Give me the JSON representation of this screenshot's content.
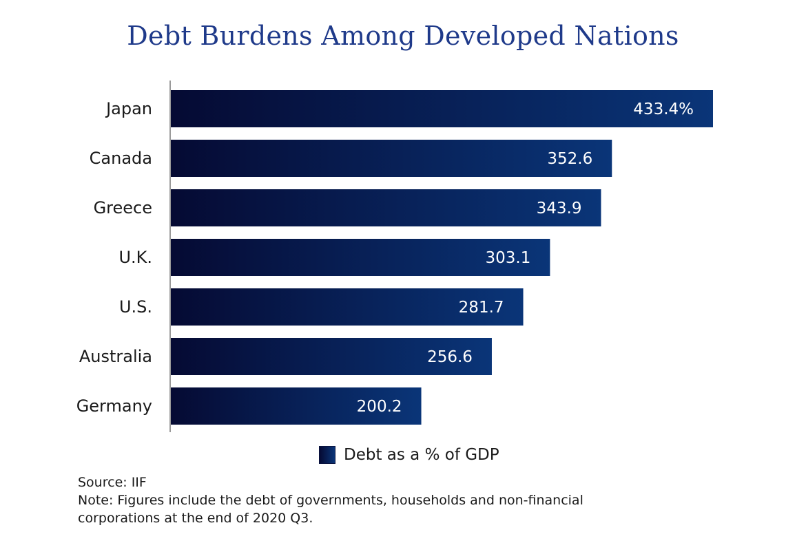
{
  "title": "Debt Burdens Among Developed Nations",
  "colors": {
    "title": "#1f3a8a",
    "bar_dark": "#050a33",
    "bar_light": "#0a3578",
    "axis": "#9a9a9a",
    "text": "#1a1a1a"
  },
  "legend": {
    "label": "Debt as a % of GDP"
  },
  "footnotes": {
    "source": "Source: IIF",
    "note_line1": "Note: Figures include the debt of governments, households and non-financial",
    "note_line2": "corporations at the end of 2020 Q3."
  },
  "chart_data": {
    "type": "bar",
    "orientation": "horizontal",
    "categories": [
      "Japan",
      "Canada",
      "Greece",
      "U.K.",
      "U.S.",
      "Australia",
      "Germany"
    ],
    "values": [
      433.4,
      352.6,
      343.9,
      303.1,
      281.7,
      256.6,
      200.2
    ],
    "value_labels": [
      "433.4%",
      "352.6",
      "343.9",
      "303.1",
      "281.7",
      "256.6",
      "200.2"
    ],
    "title": "Debt Burdens Among Developed Nations",
    "xlabel": "",
    "ylabel": "",
    "xlim": [
      0,
      433.4
    ],
    "grid": false,
    "legend_position": "bottom"
  }
}
